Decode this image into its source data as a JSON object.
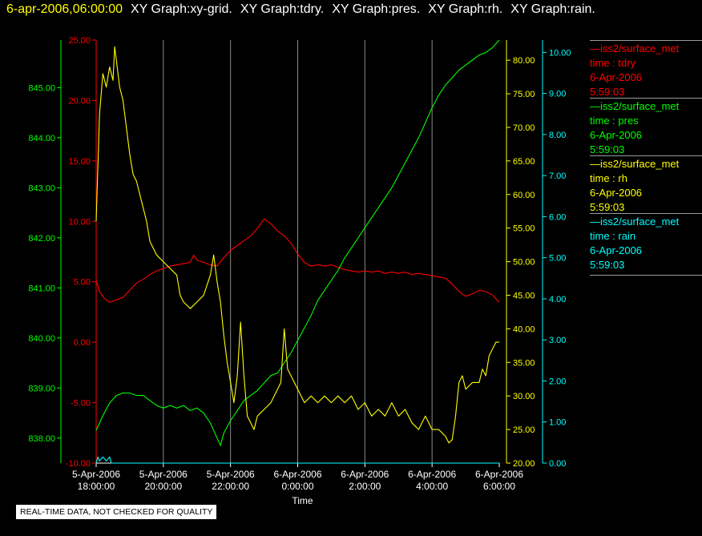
{
  "header": {
    "date_label": "6-apr-2006,06:00:00",
    "graph_titles": [
      "XY Graph:xy-grid.",
      "XY Graph:tdry.",
      "XY Graph:pres.",
      "XY Graph:rh.",
      "XY Graph:rain."
    ]
  },
  "legend": [
    {
      "name": "iss2/surface_met",
      "var": "time : tdry",
      "date": "6-Apr-2006",
      "time": "5:59:03",
      "color": "#ff0000"
    },
    {
      "name": "iss2/surface_met",
      "var": "time : pres",
      "date": "6-Apr-2006",
      "time": "5:59:03",
      "color": "#00ff00"
    },
    {
      "name": "iss2/surface_met",
      "var": "time : rh",
      "date": "6-Apr-2006",
      "time": "5:59:03",
      "color": "#ffff00"
    },
    {
      "name": "iss2/surface_met",
      "var": "time : rain",
      "date": "6-Apr-2006",
      "time": "5:59:03",
      "color": "#00ffff"
    }
  ],
  "footer_note": "REAL-TIME DATA, NOT CHECKED FOR QUALITY",
  "chart_data": {
    "type": "line",
    "xlabel": "Time",
    "x_ticks": [
      {
        "hours": 0,
        "date": "5-Apr-2006",
        "time": "18:00:00"
      },
      {
        "hours": 2,
        "date": "5-Apr-2006",
        "time": "20:00:00"
      },
      {
        "hours": 4,
        "date": "5-Apr-2006",
        "time": "22:00:00"
      },
      {
        "hours": 6,
        "date": "6-Apr-2006",
        "time": "0:00:00"
      },
      {
        "hours": 8,
        "date": "6-Apr-2006",
        "time": "2:00:00"
      },
      {
        "hours": 10,
        "date": "6-Apr-2006",
        "time": "4:00:00"
      },
      {
        "hours": 12,
        "date": "6-Apr-2006",
        "time": "6:00:00"
      }
    ],
    "xlim_hours": [
      0,
      12
    ],
    "grid": "vertical",
    "axes": [
      {
        "id": "pres",
        "color": "#00ff00",
        "ylim": [
          837.5,
          845.95
        ],
        "ticks": [
          "838.00",
          "839.00",
          "840.00",
          "841.00",
          "842.00",
          "843.00",
          "844.00",
          "845.00"
        ],
        "tick_values": [
          838,
          839,
          840,
          841,
          842,
          843,
          844,
          845
        ]
      },
      {
        "id": "tdry",
        "color": "#ff0000",
        "ylim": [
          -10,
          25
        ],
        "ticks": [
          "-10.00",
          "-5.00",
          "0.00",
          "5.00",
          "10.00",
          "15.00",
          "20.00",
          "25.00"
        ],
        "tick_values": [
          -10,
          -5,
          0,
          5,
          10,
          15,
          20,
          25
        ]
      },
      {
        "id": "rh",
        "color": "#ffff00",
        "ylim": [
          20,
          83
        ],
        "ticks": [
          "20.00",
          "25.00",
          "30.00",
          "35.00",
          "40.00",
          "45.00",
          "50.00",
          "55.00",
          "60.00",
          "65.00",
          "70.00",
          "75.00",
          "80.00"
        ],
        "tick_values": [
          20,
          25,
          30,
          35,
          40,
          45,
          50,
          55,
          60,
          65,
          70,
          75,
          80
        ]
      },
      {
        "id": "rain",
        "color": "#00ffff",
        "ylim": [
          0,
          10.3
        ],
        "ticks": [
          "0.00",
          "1.00",
          "2.00",
          "3.00",
          "4.00",
          "5.00",
          "6.00",
          "7.00",
          "8.00",
          "9.00",
          "10.00"
        ],
        "tick_values": [
          0,
          1,
          2,
          3,
          4,
          5,
          6,
          7,
          8,
          9,
          10
        ]
      }
    ],
    "series": [
      {
        "name": "tdry",
        "axis": "tdry",
        "color": "#ff0000",
        "points": [
          [
            0,
            5.1
          ],
          [
            0.1,
            4.2
          ],
          [
            0.25,
            3.6
          ],
          [
            0.4,
            3.3
          ],
          [
            0.6,
            3.5
          ],
          [
            0.8,
            3.7
          ],
          [
            1.0,
            4.3
          ],
          [
            1.2,
            4.9
          ],
          [
            1.4,
            5.2
          ],
          [
            1.6,
            5.6
          ],
          [
            1.8,
            5.9
          ],
          [
            2.0,
            6.1
          ],
          [
            2.2,
            6.3
          ],
          [
            2.4,
            6.4
          ],
          [
            2.6,
            6.5
          ],
          [
            2.8,
            6.6
          ],
          [
            2.9,
            7.2
          ],
          [
            3.0,
            6.8
          ],
          [
            3.2,
            6.6
          ],
          [
            3.4,
            6.4
          ],
          [
            3.6,
            6.3
          ],
          [
            3.8,
            7.0
          ],
          [
            4.0,
            7.6
          ],
          [
            4.2,
            8.0
          ],
          [
            4.4,
            8.4
          ],
          [
            4.6,
            8.8
          ],
          [
            4.8,
            9.4
          ],
          [
            5.0,
            10.2
          ],
          [
            5.2,
            9.8
          ],
          [
            5.4,
            9.2
          ],
          [
            5.6,
            8.8
          ],
          [
            5.8,
            8.2
          ],
          [
            6.0,
            7.3
          ],
          [
            6.2,
            6.6
          ],
          [
            6.4,
            6.3
          ],
          [
            6.6,
            6.4
          ],
          [
            6.8,
            6.3
          ],
          [
            7.0,
            6.4
          ],
          [
            7.2,
            6.2
          ],
          [
            7.4,
            6.0
          ],
          [
            7.6,
            5.9
          ],
          [
            7.8,
            5.8
          ],
          [
            8.0,
            5.9
          ],
          [
            8.2,
            5.8
          ],
          [
            8.4,
            5.9
          ],
          [
            8.6,
            5.7
          ],
          [
            8.8,
            5.8
          ],
          [
            9.0,
            5.7
          ],
          [
            9.2,
            5.8
          ],
          [
            9.4,
            5.6
          ],
          [
            9.6,
            5.7
          ],
          [
            9.8,
            5.6
          ],
          [
            10.0,
            5.5
          ],
          [
            10.2,
            5.4
          ],
          [
            10.4,
            5.3
          ],
          [
            10.6,
            4.8
          ],
          [
            10.8,
            4.2
          ],
          [
            11.0,
            3.8
          ],
          [
            11.2,
            4.0
          ],
          [
            11.4,
            4.3
          ],
          [
            11.6,
            4.2
          ],
          [
            11.8,
            3.9
          ],
          [
            12.0,
            3.3
          ]
        ]
      },
      {
        "name": "pres",
        "axis": "pres",
        "color": "#00ff00",
        "points": [
          [
            0,
            838.15
          ],
          [
            0.2,
            838.45
          ],
          [
            0.4,
            838.7
          ],
          [
            0.6,
            838.85
          ],
          [
            0.8,
            838.9
          ],
          [
            1.0,
            838.9
          ],
          [
            1.2,
            838.85
          ],
          [
            1.4,
            838.85
          ],
          [
            1.6,
            838.75
          ],
          [
            1.8,
            838.65
          ],
          [
            2.0,
            838.6
          ],
          [
            2.2,
            838.65
          ],
          [
            2.4,
            838.6
          ],
          [
            2.6,
            838.65
          ],
          [
            2.8,
            838.55
          ],
          [
            3.0,
            838.6
          ],
          [
            3.2,
            838.5
          ],
          [
            3.4,
            838.3
          ],
          [
            3.6,
            838.0
          ],
          [
            3.7,
            837.85
          ],
          [
            3.8,
            838.1
          ],
          [
            4.0,
            838.35
          ],
          [
            4.2,
            838.55
          ],
          [
            4.4,
            838.75
          ],
          [
            4.6,
            838.85
          ],
          [
            4.8,
            838.95
          ],
          [
            5.0,
            839.1
          ],
          [
            5.2,
            839.25
          ],
          [
            5.4,
            839.3
          ],
          [
            5.6,
            839.5
          ],
          [
            5.8,
            839.7
          ],
          [
            6.0,
            839.95
          ],
          [
            6.2,
            840.2
          ],
          [
            6.4,
            840.45
          ],
          [
            6.6,
            840.75
          ],
          [
            6.8,
            840.95
          ],
          [
            7.0,
            841.15
          ],
          [
            7.2,
            841.35
          ],
          [
            7.4,
            841.6
          ],
          [
            7.6,
            841.8
          ],
          [
            7.8,
            842.0
          ],
          [
            8.0,
            842.2
          ],
          [
            8.2,
            842.4
          ],
          [
            8.4,
            842.6
          ],
          [
            8.6,
            842.8
          ],
          [
            8.8,
            843.0
          ],
          [
            9.0,
            843.25
          ],
          [
            9.2,
            843.5
          ],
          [
            9.4,
            843.75
          ],
          [
            9.6,
            844.0
          ],
          [
            9.8,
            844.3
          ],
          [
            10.0,
            844.6
          ],
          [
            10.2,
            844.85
          ],
          [
            10.4,
            845.05
          ],
          [
            10.6,
            845.2
          ],
          [
            10.8,
            845.35
          ],
          [
            11.0,
            845.45
          ],
          [
            11.2,
            845.55
          ],
          [
            11.4,
            845.65
          ],
          [
            11.6,
            845.7
          ],
          [
            11.8,
            845.8
          ],
          [
            12.0,
            845.95
          ]
        ]
      },
      {
        "name": "rh",
        "axis": "rh",
        "color": "#ffff00",
        "points": [
          [
            0,
            56
          ],
          [
            0.1,
            72
          ],
          [
            0.2,
            78
          ],
          [
            0.3,
            76
          ],
          [
            0.4,
            79
          ],
          [
            0.5,
            77
          ],
          [
            0.55,
            82
          ],
          [
            0.6,
            80
          ],
          [
            0.7,
            76
          ],
          [
            0.8,
            74
          ],
          [
            0.9,
            70
          ],
          [
            1.0,
            66
          ],
          [
            1.1,
            63
          ],
          [
            1.2,
            62
          ],
          [
            1.3,
            60
          ],
          [
            1.4,
            58
          ],
          [
            1.5,
            56
          ],
          [
            1.6,
            53
          ],
          [
            1.8,
            51
          ],
          [
            2.0,
            50
          ],
          [
            2.2,
            49
          ],
          [
            2.4,
            48
          ],
          [
            2.5,
            45
          ],
          [
            2.6,
            44
          ],
          [
            2.8,
            43
          ],
          [
            3.0,
            44
          ],
          [
            3.2,
            45
          ],
          [
            3.4,
            48
          ],
          [
            3.5,
            51
          ],
          [
            3.6,
            47
          ],
          [
            3.7,
            44
          ],
          [
            3.8,
            39
          ],
          [
            3.9,
            35
          ],
          [
            4.0,
            32
          ],
          [
            4.1,
            29
          ],
          [
            4.2,
            33
          ],
          [
            4.3,
            41
          ],
          [
            4.4,
            33
          ],
          [
            4.5,
            27
          ],
          [
            4.6,
            26
          ],
          [
            4.7,
            25
          ],
          [
            4.8,
            27
          ],
          [
            5.0,
            28
          ],
          [
            5.2,
            29
          ],
          [
            5.4,
            31
          ],
          [
            5.5,
            32
          ],
          [
            5.6,
            40
          ],
          [
            5.7,
            34
          ],
          [
            5.8,
            33
          ],
          [
            6.0,
            31
          ],
          [
            6.2,
            29
          ],
          [
            6.4,
            30
          ],
          [
            6.6,
            29
          ],
          [
            6.8,
            30
          ],
          [
            7.0,
            29
          ],
          [
            7.2,
            30
          ],
          [
            7.4,
            29
          ],
          [
            7.6,
            30
          ],
          [
            7.8,
            28
          ],
          [
            8.0,
            29
          ],
          [
            8.2,
            27
          ],
          [
            8.4,
            28
          ],
          [
            8.6,
            27
          ],
          [
            8.8,
            29
          ],
          [
            9.0,
            27
          ],
          [
            9.2,
            28
          ],
          [
            9.4,
            26
          ],
          [
            9.6,
            25
          ],
          [
            9.8,
            27
          ],
          [
            10.0,
            25
          ],
          [
            10.2,
            25
          ],
          [
            10.4,
            24
          ],
          [
            10.5,
            23
          ],
          [
            10.6,
            23.5
          ],
          [
            10.7,
            27
          ],
          [
            10.8,
            32
          ],
          [
            10.9,
            33
          ],
          [
            11.0,
            31
          ],
          [
            11.2,
            32
          ],
          [
            11.4,
            32
          ],
          [
            11.5,
            34
          ],
          [
            11.6,
            33
          ],
          [
            11.7,
            36
          ],
          [
            11.8,
            37
          ],
          [
            11.9,
            38
          ],
          [
            12.0,
            38
          ]
        ]
      },
      {
        "name": "rain",
        "axis": "rain",
        "color": "#00ffff",
        "points": [
          [
            0,
            0.0
          ],
          [
            0.05,
            0.15
          ],
          [
            0.1,
            0.05
          ],
          [
            0.2,
            0.15
          ],
          [
            0.3,
            0.05
          ],
          [
            0.4,
            0.15
          ],
          [
            0.45,
            0.0
          ],
          [
            12.0,
            0.0
          ]
        ]
      }
    ]
  }
}
